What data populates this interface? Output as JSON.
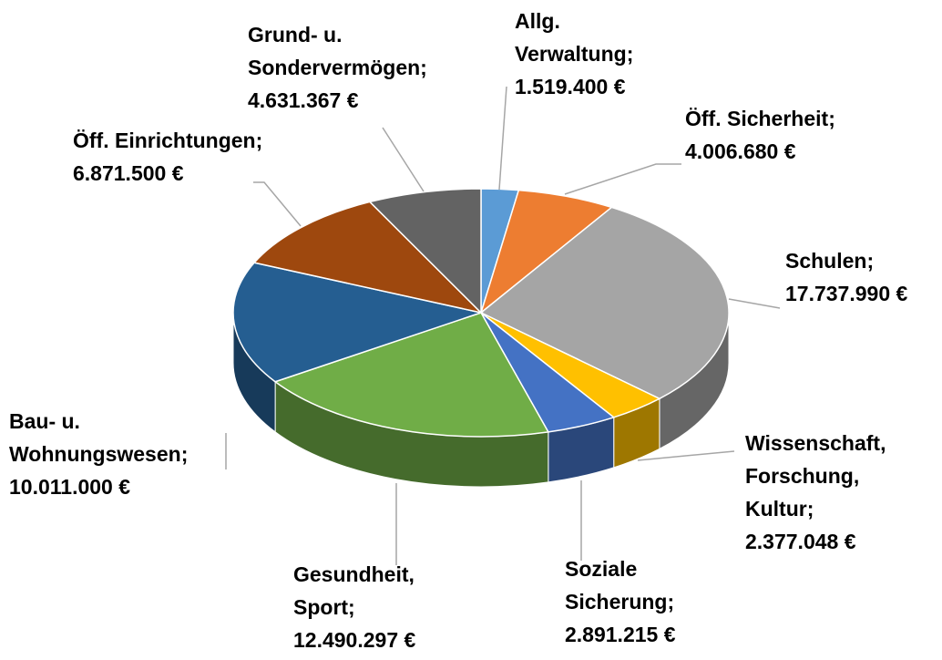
{
  "chart_data": {
    "type": "pie",
    "categories": [
      "Allg. Verwaltung;",
      "Öff. Sicherheit;",
      "Schulen;",
      "Wissenschaft, Forschung, Kultur;",
      "Soziale Sicherung;",
      "Gesundheit, Sport;",
      "Bau- u. Wohnungswesen;",
      "Öff. Einrichtungen;",
      "Grund- u. Sondervermögen;"
    ],
    "values": [
      1519400,
      4006680,
      17737990,
      2377048,
      2891215,
      12490297,
      10011000,
      6871500,
      4631367
    ],
    "value_labels": [
      "1.519.400 €",
      "4.006.680 €",
      "17.737.990 €",
      "2.377.048 €",
      "2.891.215 €",
      "12.490.297 €",
      "10.011.000 €",
      "6.871.500 €",
      "4.631.367 €"
    ],
    "colors": [
      "#5b9bd5",
      "#ed7d31",
      "#a5a5a5",
      "#ffc000",
      "#4472c4",
      "#70ad47",
      "#255e91",
      "#9e480e",
      "#636363"
    ]
  }
}
